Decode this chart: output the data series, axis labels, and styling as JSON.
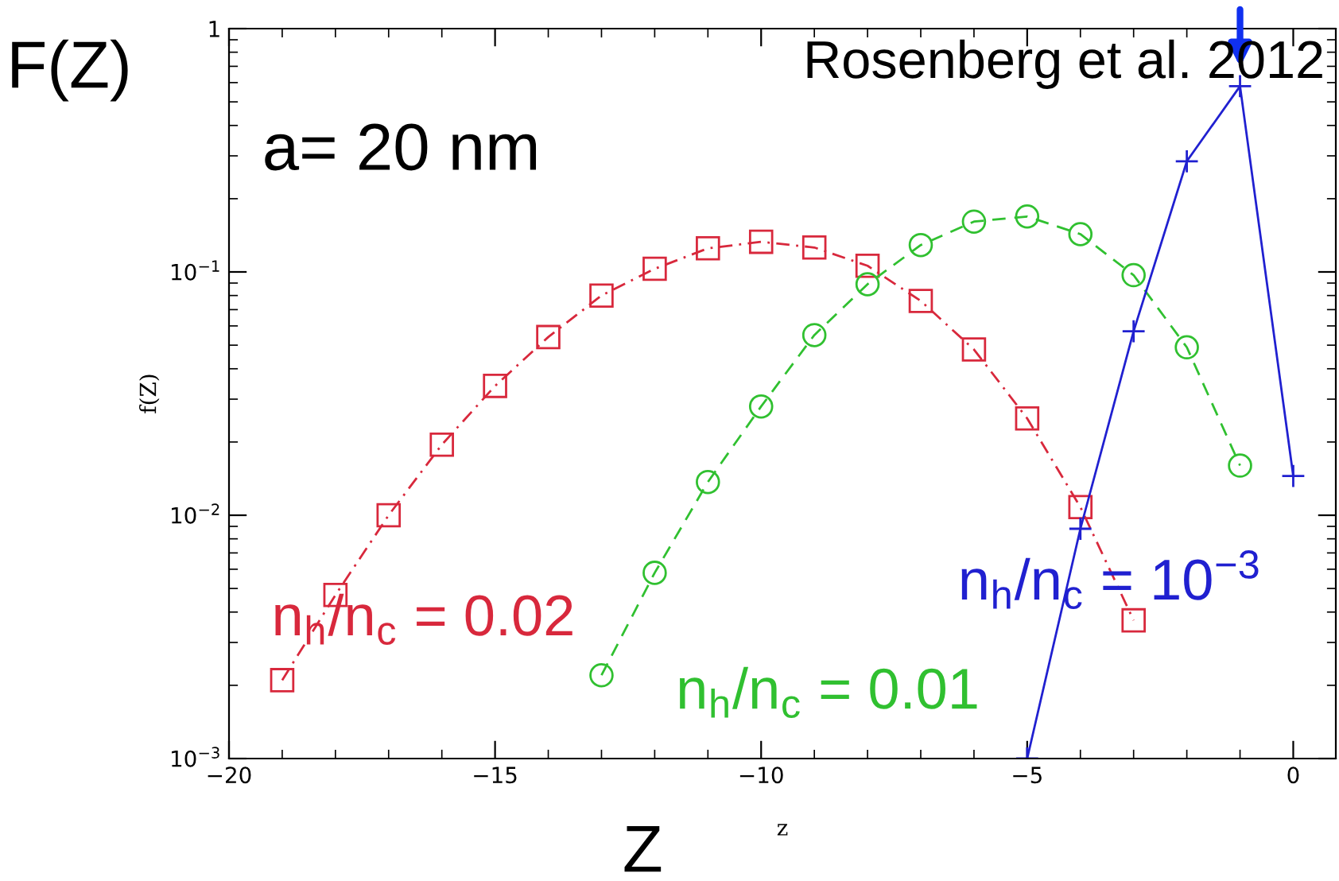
{
  "chart_data": {
    "type": "line",
    "xlabel": "z",
    "ylabel": "f(Z)",
    "log": "y",
    "grid": false,
    "legend": false,
    "xlim": [
      -20,
      0.8
    ],
    "xticks": [
      {
        "value": -20,
        "label": "−20"
      },
      {
        "value": -15,
        "label": "−15"
      },
      {
        "value": -10,
        "label": "−10"
      },
      {
        "value": -5,
        "label": "−5"
      },
      {
        "value": 0,
        "label": "0"
      }
    ],
    "ylim": [
      0.001,
      1
    ],
    "yticks": [
      {
        "value": 0.001,
        "label": "10$^{−3}$"
      },
      {
        "value": 0.01,
        "label": "10$^{−2}$"
      },
      {
        "value": 0.1,
        "label": "10$^{−1}$"
      },
      {
        "value": 1,
        "label": "1"
      }
    ],
    "series": [
      {
        "name": "n$_{h}$/n$_{c}$ = 0.02",
        "color": "#d8283c",
        "marker": "square",
        "line_style": "dashdot",
        "x": [
          -19,
          -18,
          -17,
          -16,
          -15,
          -14,
          -13,
          -12,
          -11,
          -10,
          -9,
          -8,
          -7,
          -6,
          -5,
          -4,
          -3
        ],
        "values": [
          0.0021,
          0.0047,
          0.01,
          0.0195,
          0.034,
          0.054,
          0.08,
          0.103,
          0.125,
          0.133,
          0.126,
          0.106,
          0.076,
          0.048,
          0.025,
          0.0108,
          0.0037
        ]
      },
      {
        "name": "n$_{h}$/n$_{c}$ = 0.01",
        "color": "#30c030",
        "marker": "circle",
        "line_style": "dashed",
        "x": [
          -13,
          -12,
          -11,
          -10,
          -9,
          -8,
          -7,
          -6,
          -5,
          -4,
          -3,
          -2,
          -1
        ],
        "values": [
          0.0022,
          0.0058,
          0.0137,
          0.028,
          0.055,
          0.089,
          0.129,
          0.161,
          0.169,
          0.143,
          0.097,
          0.049,
          0.016
        ]
      },
      {
        "name": "n$_{h}$/n$_{c}$ = 10$^{−3}$",
        "color": "#2020d0",
        "marker": "cross",
        "line_style": "solid",
        "x": [
          -5,
          -4,
          -3,
          -2,
          -1,
          0
        ],
        "values": [
          0.001,
          0.0088,
          0.057,
          0.285,
          0.58,
          0.0145
        ]
      }
    ],
    "annotations": [
      "Rosenberg et al. 2012",
      "a= 20 nm",
      "F(Z)",
      "Z"
    ]
  }
}
